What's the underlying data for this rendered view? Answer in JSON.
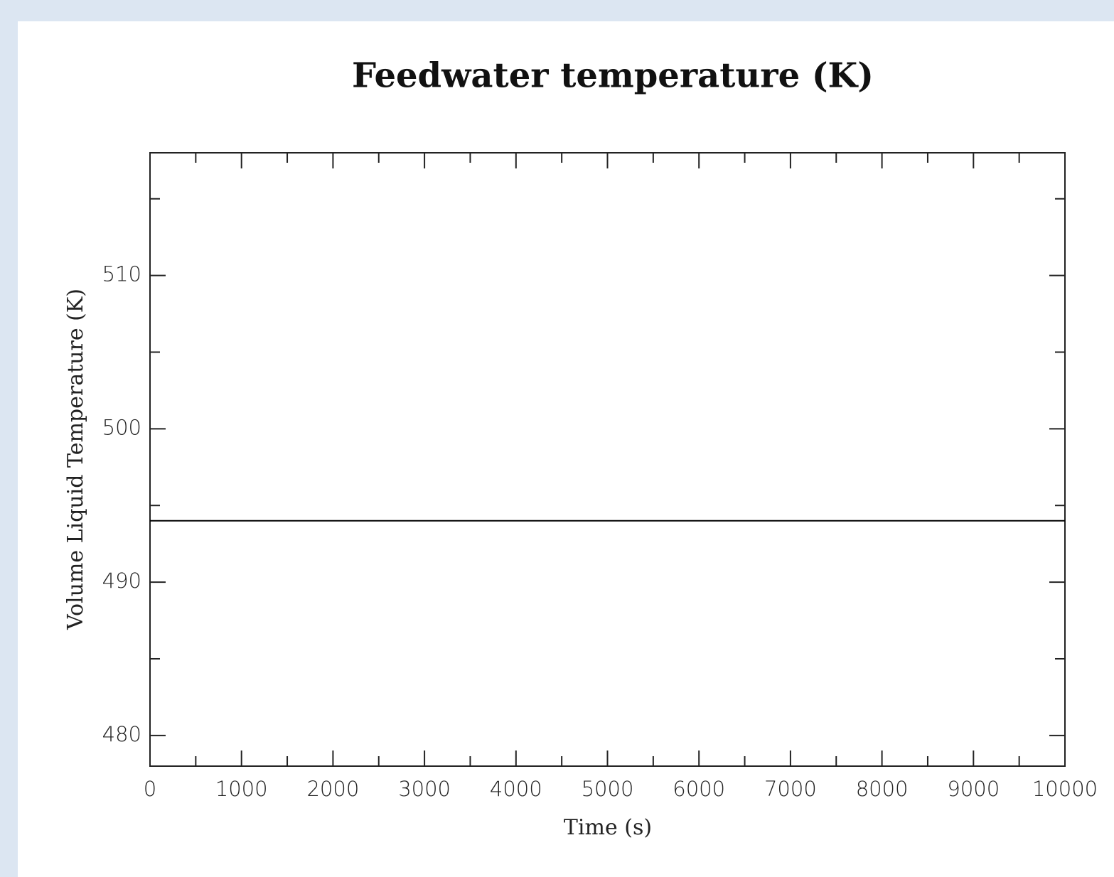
{
  "chart_data": {
    "type": "line",
    "title": "Feedwater temperature (K)",
    "xlabel": "Time (s)",
    "ylabel": "Volume Liquid Temperature (K)",
    "x": [
      0,
      10000
    ],
    "series": [
      {
        "color": "#000000",
        "values": [
          494,
          494
        ]
      }
    ],
    "xlim": [
      0,
      10000
    ],
    "xticks": [
      0,
      1000,
      2000,
      3000,
      4000,
      5000,
      6000,
      7000,
      8000,
      9000,
      10000
    ],
    "ylim": [
      478,
      518
    ],
    "yticks": [
      480,
      490,
      500,
      510
    ],
    "grid": false
  }
}
